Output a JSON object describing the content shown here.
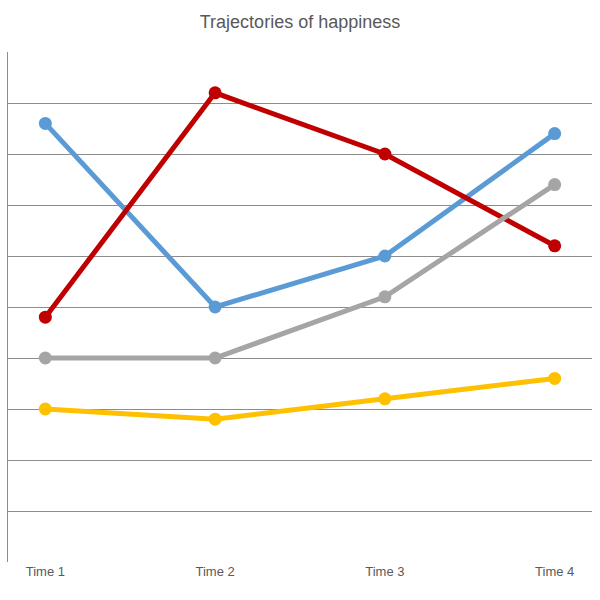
{
  "chart_data": {
    "type": "line",
    "title": "Trajectories of happiness",
    "categories": [
      "Time 1",
      "Time 2",
      "Time 3",
      "Time 4"
    ],
    "series": [
      {
        "color": "#5B9BD5",
        "values": [
          8.6,
          5.0,
          6.0,
          8.4
        ]
      },
      {
        "color": "#C00000",
        "values": [
          4.8,
          9.2,
          8.0,
          6.2
        ]
      },
      {
        "color": "#A5A5A5",
        "values": [
          4.0,
          4.0,
          5.2,
          7.4
        ]
      },
      {
        "color": "#FFC000",
        "values": [
          3.0,
          2.8,
          3.2,
          3.6
        ]
      }
    ],
    "ylim": [
      0,
      10
    ],
    "yticks": [
      0,
      1,
      2,
      3,
      4,
      5,
      6,
      7,
      8,
      9,
      10
    ],
    "grid": true,
    "tick_labels": "x",
    "marker": "circle",
    "line_style": "solid"
  }
}
